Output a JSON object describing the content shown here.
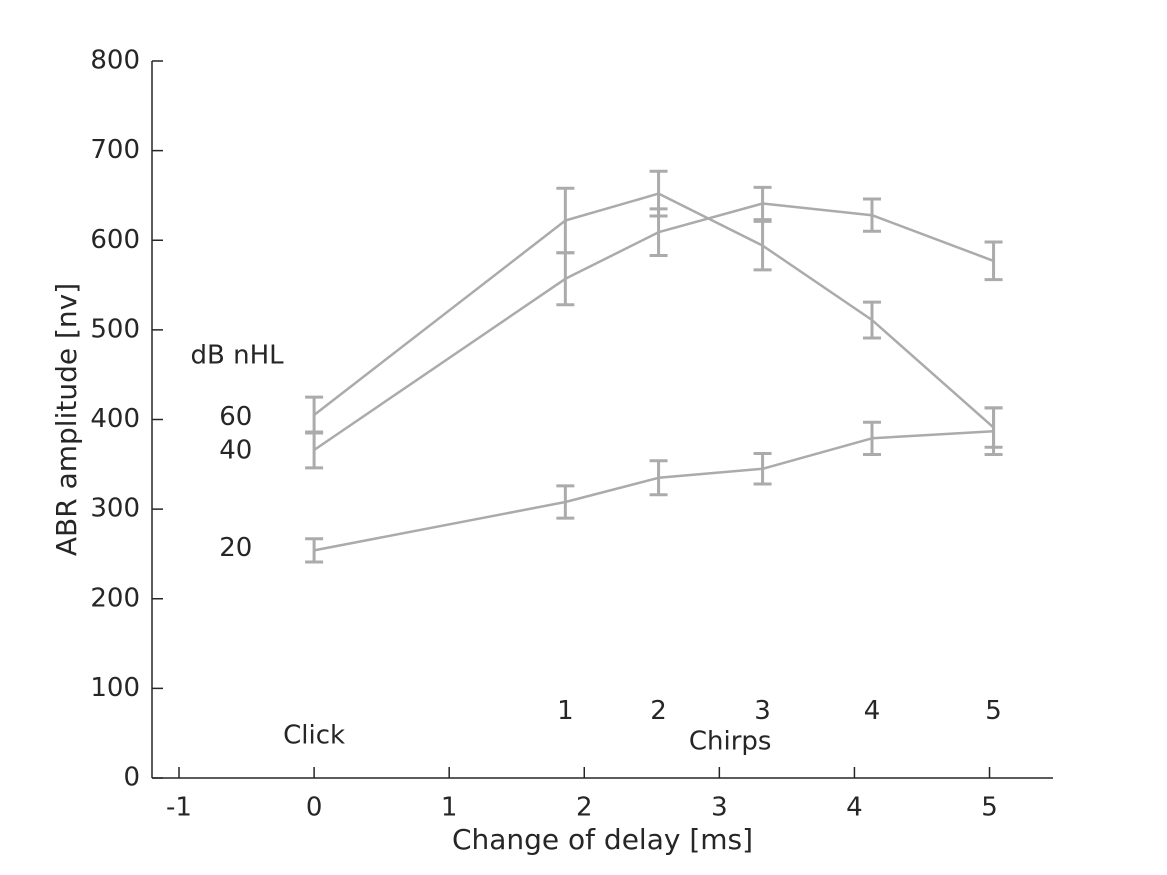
{
  "figure": {
    "background": "#ffffff",
    "axis_color": "#262626",
    "series_color": "#ababab"
  },
  "chart_data": {
    "type": "line",
    "title": "",
    "xlabel": "Change of delay [ms]",
    "ylabel": "ABR amplitude [nv]",
    "xlim": [
      -1.2,
      5.47
    ],
    "ylim": [
      0,
      800
    ],
    "xticks": [
      "-1",
      "0",
      "1",
      "2",
      "3",
      "4",
      "5"
    ],
    "xtick_values": [
      -1,
      0,
      1,
      2,
      3,
      4,
      5
    ],
    "yticks": [
      "0",
      "100",
      "200",
      "300",
      "400",
      "500",
      "600",
      "700",
      "800"
    ],
    "ytick_values": [
      0,
      100,
      200,
      300,
      400,
      500,
      600,
      700,
      800
    ],
    "grid": false,
    "legend_position": "inline-left-labels",
    "x": [
      0,
      1.86,
      2.55,
      3.32,
      4.13,
      5.03
    ],
    "series": [
      {
        "name": "60",
        "values": [
          405,
          622,
          652,
          594,
          511,
          391
        ],
        "errors": [
          20,
          36,
          25,
          27,
          20,
          22
        ]
      },
      {
        "name": "40",
        "values": [
          366,
          557,
          609,
          641,
          628,
          577
        ],
        "errors": [
          20,
          29,
          26,
          18,
          18,
          21
        ]
      },
      {
        "name": "20",
        "values": [
          254,
          308,
          335,
          345,
          379,
          387
        ],
        "errors": [
          13,
          18,
          19,
          17,
          18,
          26
        ]
      }
    ],
    "annotations": [
      {
        "id": "group-units-label",
        "text": "dB nHL",
        "x": -0.57,
        "y": 471
      },
      {
        "id": "series-label-60",
        "text": "60",
        "x": -0.58,
        "y": 402
      },
      {
        "id": "series-label-40",
        "text": "40",
        "x": -0.58,
        "y": 365
      },
      {
        "id": "series-label-20",
        "text": "20",
        "x": -0.58,
        "y": 256
      },
      {
        "id": "click-label",
        "text": "Click",
        "x": 0.0,
        "y": 47
      },
      {
        "id": "chirp-number-1",
        "text": "1",
        "x": 1.86,
        "y": 74
      },
      {
        "id": "chirp-number-2",
        "text": "2",
        "x": 2.55,
        "y": 74
      },
      {
        "id": "chirp-number-3",
        "text": "3",
        "x": 3.32,
        "y": 74
      },
      {
        "id": "chirp-number-4",
        "text": "4",
        "x": 4.13,
        "y": 74
      },
      {
        "id": "chirp-number-5",
        "text": "5",
        "x": 5.03,
        "y": 74
      },
      {
        "id": "chirps-label",
        "text": "Chirps",
        "x": 3.08,
        "y": 40
      }
    ]
  }
}
